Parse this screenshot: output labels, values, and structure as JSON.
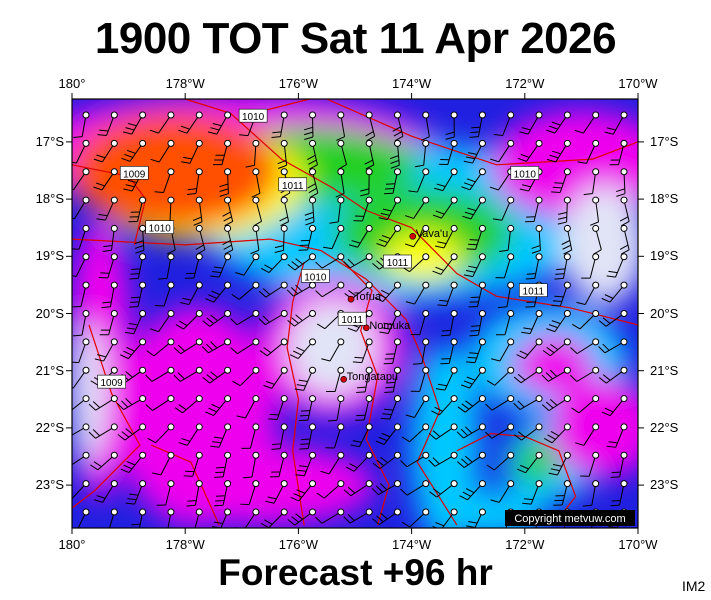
{
  "header": {
    "title": "1900 TOT Sat 11 Apr 2026"
  },
  "footer": {
    "forecast": "Forecast +96 hr",
    "image_code": "IM2"
  },
  "map": {
    "lon_labels": [
      "180°",
      "178°W",
      "176°W",
      "174°W",
      "172°W",
      "170°W"
    ],
    "lat_labels": [
      "17°S",
      "18°S",
      "19°S",
      "20°S",
      "21°S",
      "22°S",
      "23°S"
    ],
    "places": [
      {
        "name": "Vava'u",
        "lon": -173.98,
        "lat": -18.65
      },
      {
        "name": "Tofua",
        "lon": -175.07,
        "lat": -19.75
      },
      {
        "name": "Nomuka",
        "lon": -174.8,
        "lat": -20.25
      },
      {
        "name": "Tongatapu",
        "lon": -175.2,
        "lat": -21.15
      }
    ],
    "isobar_labels": [
      {
        "text": "1010",
        "lon": -176.8,
        "lat": -16.55
      },
      {
        "text": "1009",
        "lon": -178.9,
        "lat": -17.55
      },
      {
        "text": "1011",
        "lon": -176.1,
        "lat": -17.75
      },
      {
        "text": "1010",
        "lon": -172.0,
        "lat": -17.55
      },
      {
        "text": "1010",
        "lon": -178.45,
        "lat": -18.5
      },
      {
        "text": "1011",
        "lon": -174.25,
        "lat": -19.1
      },
      {
        "text": "1011",
        "lon": -171.85,
        "lat": -19.6
      },
      {
        "text": "1010",
        "lon": -175.7,
        "lat": -19.35
      },
      {
        "text": "1011",
        "lon": -175.05,
        "lat": -20.1
      },
      {
        "text": "1009",
        "lon": -179.3,
        "lat": -21.2
      }
    ],
    "copyright": "Copyright metvuw.com",
    "colors": {
      "calm": "#e1e4f6",
      "light": "#ee00ee",
      "moderate": "#2020e0",
      "fresh": "#00c8ff",
      "strong": "#20d020",
      "gale": "#ffff00",
      "storm": "#ff5000",
      "isobar": "#e00000"
    }
  }
}
